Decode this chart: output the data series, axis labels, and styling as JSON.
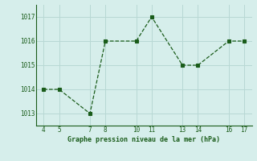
{
  "x": [
    4,
    5,
    7,
    8,
    10,
    11,
    13,
    14,
    16,
    17
  ],
  "y": [
    1014.0,
    1014.0,
    1013.0,
    1016.0,
    1016.0,
    1017.0,
    1015.0,
    1015.0,
    1016.0,
    1016.0
  ],
  "line_color": "#1a5c1a",
  "marker_color": "#1a5c1a",
  "bg_color": "#d6eeeb",
  "grid_color": "#b8d8d4",
  "xlabel": "Graphe pression niveau de la mer (hPa)",
  "xlabel_color": "#1a5c1a",
  "tick_color": "#1a5c1a",
  "xticks": [
    4,
    5,
    7,
    8,
    10,
    11,
    13,
    14,
    16,
    17
  ],
  "yticks": [
    1013,
    1014,
    1015,
    1016,
    1017
  ],
  "ylim": [
    1012.5,
    1017.5
  ],
  "xlim": [
    3.5,
    17.5
  ]
}
